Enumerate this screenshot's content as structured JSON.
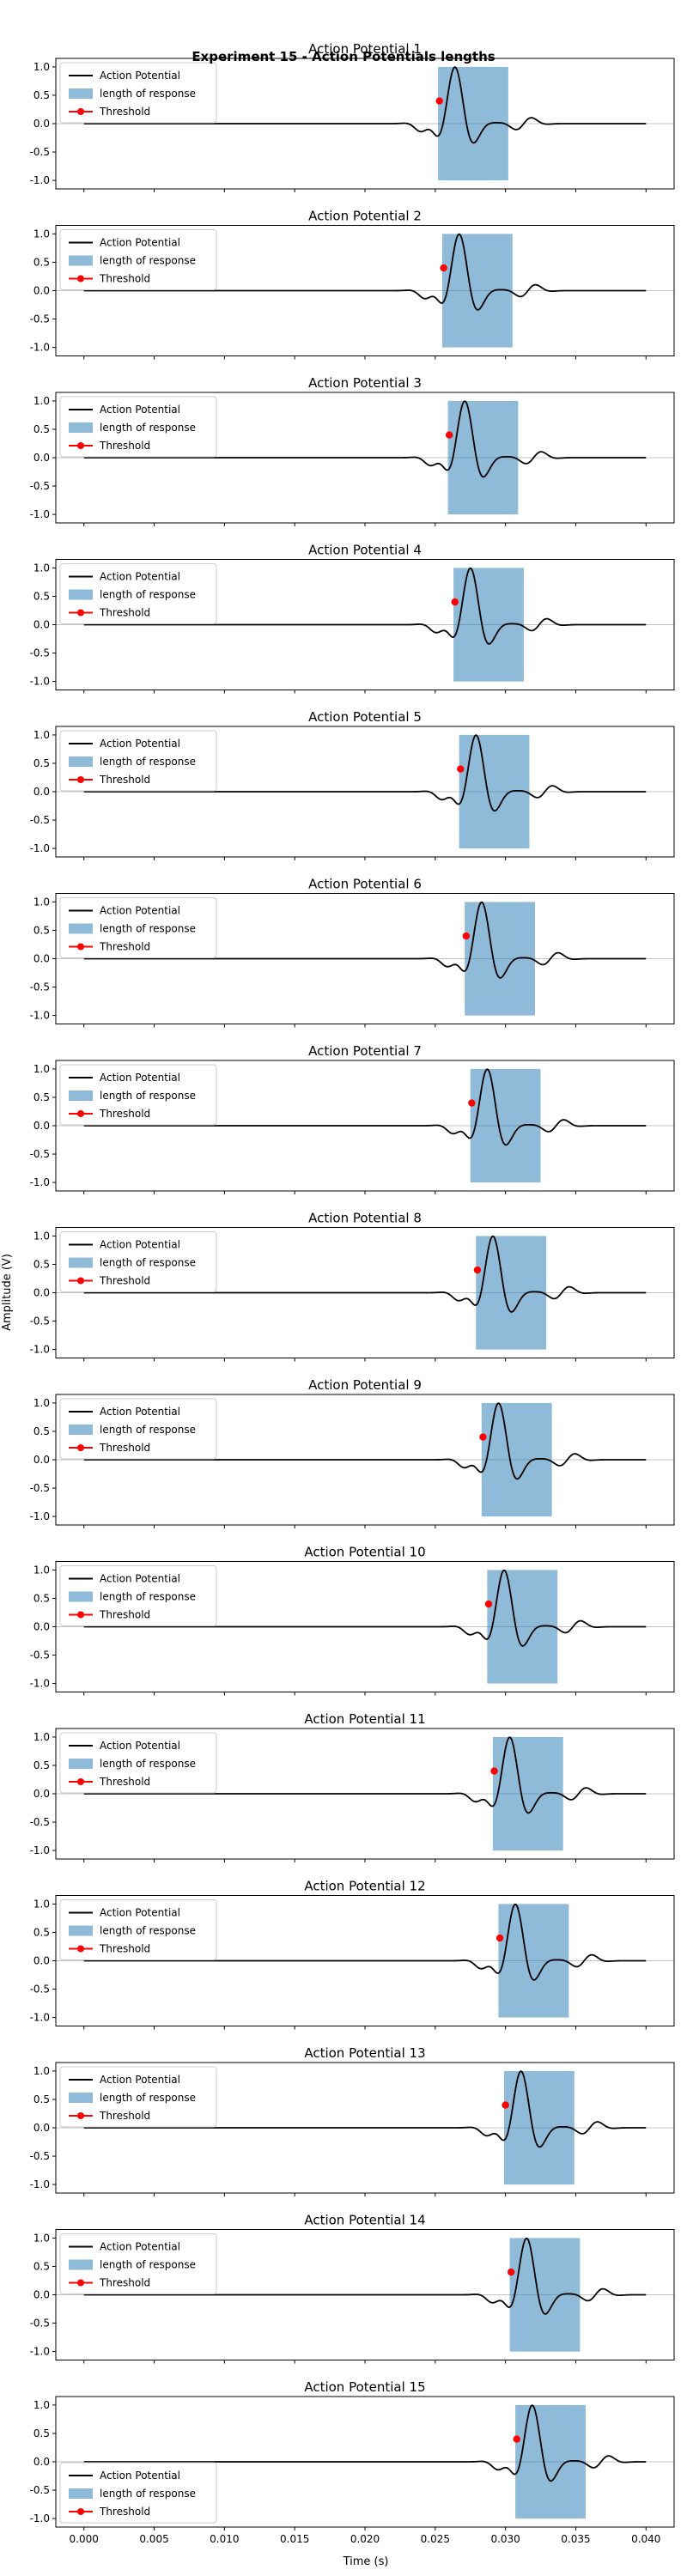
{
  "figure": {
    "suptitle": "Experiment 15 - Action Potentials lengths",
    "xlabel": "Time (s)",
    "ylabel": "Amplitude (V)"
  },
  "legend": {
    "placement": "upper-left (lower-left on last panel)",
    "entries": [
      "Action Potential",
      "length of response",
      "Threshold"
    ]
  },
  "colors": {
    "signal": "#000000",
    "response_span": "#1f77b4",
    "threshold": "#ff0000",
    "baseline": "#b0b0b0"
  },
  "chart_data": {
    "type": "line",
    "panel_count": 15,
    "xlabel": "Time (s)",
    "ylabel": "Amplitude (V)",
    "xlim": [
      -0.002,
      0.042
    ],
    "ylim": [
      -1.15,
      1.15
    ],
    "xticks": [
      "0.000",
      "0.005",
      "0.010",
      "0.015",
      "0.020",
      "0.025",
      "0.030",
      "0.035",
      "0.040"
    ],
    "yticks": [
      "1.0",
      "0.5",
      "0.0",
      "-0.5",
      "-1.0"
    ],
    "grid": false,
    "panels": [
      {
        "title": "Action Potential 1",
        "peak_time": 0.0268,
        "threshold": {
          "x": 0.0253,
          "y": 0.4
        },
        "response_span": [
          0.0252,
          0.0302
        ],
        "legend": "upper left"
      },
      {
        "title": "Action Potential 2",
        "peak_time": 0.0271,
        "threshold": {
          "x": 0.0256,
          "y": 0.4
        },
        "response_span": [
          0.0255,
          0.0305
        ],
        "legend": "upper left"
      },
      {
        "title": "Action Potential 3",
        "peak_time": 0.0275,
        "threshold": {
          "x": 0.026,
          "y": 0.4
        },
        "response_span": [
          0.0259,
          0.0309
        ],
        "legend": "upper left"
      },
      {
        "title": "Action Potential 4",
        "peak_time": 0.0279,
        "threshold": {
          "x": 0.0264,
          "y": 0.4
        },
        "response_span": [
          0.0263,
          0.0313
        ],
        "legend": "upper left"
      },
      {
        "title": "Action Potential 5",
        "peak_time": 0.0283,
        "threshold": {
          "x": 0.0268,
          "y": 0.4
        },
        "response_span": [
          0.0267,
          0.0317
        ],
        "legend": "upper left"
      },
      {
        "title": "Action Potential 6",
        "peak_time": 0.0287,
        "threshold": {
          "x": 0.0272,
          "y": 0.4
        },
        "response_span": [
          0.0271,
          0.0321
        ],
        "legend": "upper left"
      },
      {
        "title": "Action Potential 7",
        "peak_time": 0.0291,
        "threshold": {
          "x": 0.0276,
          "y": 0.4
        },
        "response_span": [
          0.0275,
          0.0325
        ],
        "legend": "upper left"
      },
      {
        "title": "Action Potential 8",
        "peak_time": 0.0295,
        "threshold": {
          "x": 0.028,
          "y": 0.4
        },
        "response_span": [
          0.0279,
          0.0329
        ],
        "legend": "upper left"
      },
      {
        "title": "Action Potential 9",
        "peak_time": 0.0299,
        "threshold": {
          "x": 0.0284,
          "y": 0.4
        },
        "response_span": [
          0.0283,
          0.0333
        ],
        "legend": "upper left"
      },
      {
        "title": "Action Potential 10",
        "peak_time": 0.0303,
        "threshold": {
          "x": 0.0288,
          "y": 0.4
        },
        "response_span": [
          0.0287,
          0.0337
        ],
        "legend": "upper left"
      },
      {
        "title": "Action Potential 11",
        "peak_time": 0.0307,
        "threshold": {
          "x": 0.0292,
          "y": 0.4
        },
        "response_span": [
          0.0291,
          0.0341
        ],
        "legend": "upper left"
      },
      {
        "title": "Action Potential 12",
        "peak_time": 0.0311,
        "threshold": {
          "x": 0.0296,
          "y": 0.4
        },
        "response_span": [
          0.0295,
          0.0345
        ],
        "legend": "upper left"
      },
      {
        "title": "Action Potential 13",
        "peak_time": 0.0315,
        "threshold": {
          "x": 0.03,
          "y": 0.4
        },
        "response_span": [
          0.0299,
          0.0349
        ],
        "legend": "upper left"
      },
      {
        "title": "Action Potential 14",
        "peak_time": 0.0319,
        "threshold": {
          "x": 0.0304,
          "y": 0.4
        },
        "response_span": [
          0.0303,
          0.0353
        ],
        "legend": "upper left"
      },
      {
        "title": "Action Potential 15",
        "peak_time": 0.0323,
        "threshold": {
          "x": 0.0308,
          "y": 0.4
        },
        "response_span": [
          0.0307,
          0.0357
        ],
        "legend": "lower left"
      }
    ]
  }
}
